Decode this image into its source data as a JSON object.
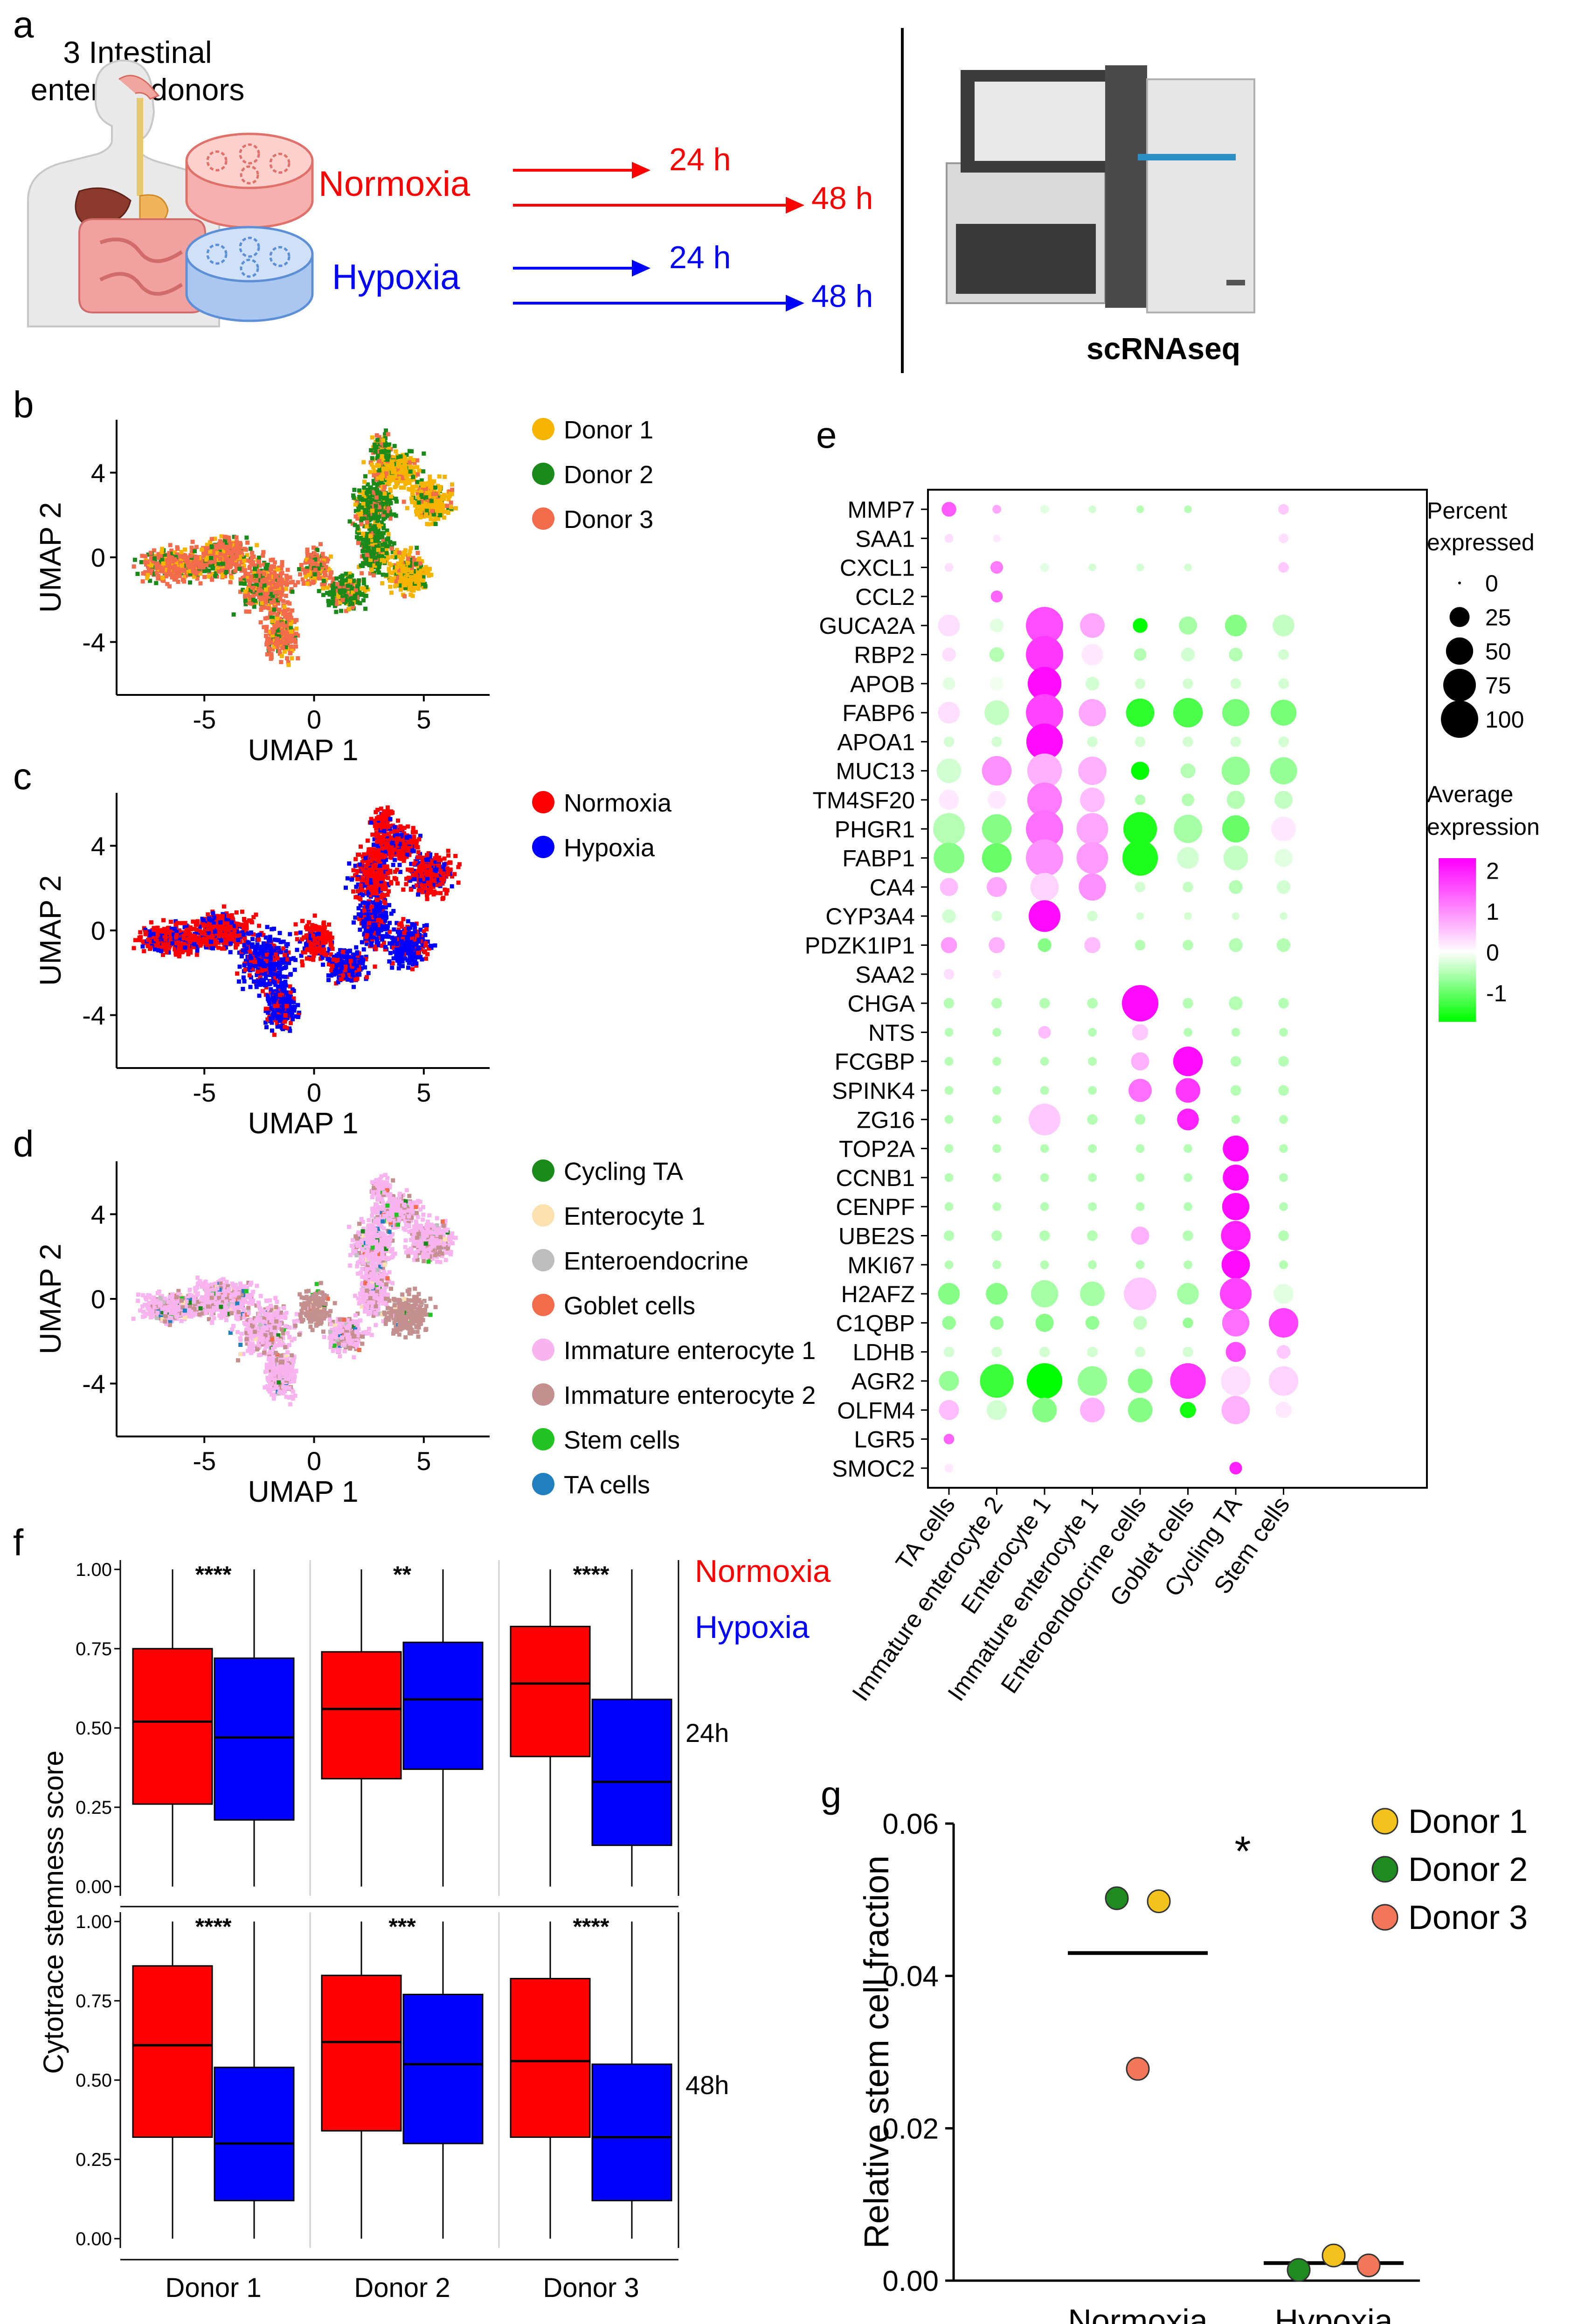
{
  "panel_labels": {
    "a": "a",
    "b": "b",
    "c": "c",
    "d": "d",
    "e": "e",
    "f": "f",
    "g": "g"
  },
  "panel_a": {
    "title_line1": "3 Intestinal",
    "title_line2": "enteroid donors",
    "normoxia_label": "Normoxia",
    "hypoxia_label": "Hypoxia",
    "normoxia_times": [
      "24 h",
      "48 h"
    ],
    "hypoxia_times": [
      "24 h",
      "48 h"
    ],
    "instrument_label": "scRNAseq",
    "colors": {
      "normoxia": "#ff0000",
      "hypoxia": "#0000ff"
    }
  },
  "chart_data": [
    {
      "id": "umap-donor",
      "type": "scatter",
      "xlabel": "UMAP 1",
      "ylabel": "UMAP 2",
      "xticks": [
        -5,
        0,
        5
      ],
      "yticks": [
        -4,
        0,
        4
      ],
      "xlim": [
        -9,
        8
      ],
      "ylim": [
        -6.5,
        6.5
      ],
      "legend": [
        {
          "label": "Donor 1",
          "color": "#f4b400"
        },
        {
          "label": "Donor 2",
          "color": "#1a8a1a"
        },
        {
          "label": "Donor 3",
          "color": "#f26b4b"
        }
      ]
    },
    {
      "id": "umap-condition",
      "type": "scatter",
      "xlabel": "UMAP 1",
      "ylabel": "UMAP 2",
      "xticks": [
        -5,
        0,
        5
      ],
      "yticks": [
        -4,
        0,
        4
      ],
      "xlim": [
        -9,
        8
      ],
      "ylim": [
        -6.5,
        6.5
      ],
      "legend": [
        {
          "label": "Normoxia",
          "color": "#ff0000"
        },
        {
          "label": "Hypoxia",
          "color": "#0000ff"
        }
      ]
    },
    {
      "id": "umap-celltype",
      "type": "scatter",
      "xlabel": "UMAP 1",
      "ylabel": "UMAP 2",
      "xticks": [
        -5,
        0,
        5
      ],
      "yticks": [
        -4,
        0,
        4
      ],
      "xlim": [
        -9,
        8
      ],
      "ylim": [
        -6.5,
        6.5
      ],
      "legend": [
        {
          "label": "Cycling TA",
          "color": "#1a8a1a"
        },
        {
          "label": "Enterocyte 1",
          "color": "#fbe0b0"
        },
        {
          "label": "Enteroendocrine",
          "color": "#bdbdbd"
        },
        {
          "label": "Goblet cells",
          "color": "#f26b4b"
        },
        {
          "label": "Immature enterocyte 1",
          "color": "#f7b4ee"
        },
        {
          "label": "Immature enterocyte 2",
          "color": "#c48f8f"
        },
        {
          "label": "Stem cells",
          "color": "#22c322"
        },
        {
          "label": "TA cells",
          "color": "#1f7fbf"
        }
      ]
    },
    {
      "id": "dotplot",
      "type": "heatmap",
      "genes": [
        "MMP7",
        "SAA1",
        "CXCL1",
        "CCL2",
        "GUCA2A",
        "RBP2",
        "APOB",
        "FABP6",
        "APOA1",
        "MUC13",
        "TM4SF20",
        "PHGR1",
        "FABP1",
        "CA4",
        "CYP3A4",
        "PDZK1IP1",
        "SAA2",
        "CHGA",
        "NTS",
        "FCGBP",
        "SPINK4",
        "ZG16",
        "TOP2A",
        "CCNB1",
        "CENPF",
        "UBE2S",
        "MKI67",
        "H2AFZ",
        "C1QBP",
        "LDHB",
        "AGR2",
        "OLFM4",
        "LGR5",
        "SMOC2"
      ],
      "clusters": [
        "TA cells",
        "Immature enterocyte 2",
        "Enterocyte 1",
        "Immature enterocyte 1",
        "Enteroendocrine cells",
        "Goblet cells",
        "Cycling TA",
        "Stem cells"
      ],
      "percent": [
        [
          12,
          3,
          3,
          2,
          2,
          2,
          3,
          5
        ],
        [
          3,
          2,
          2,
          2,
          2,
          2,
          2,
          4
        ],
        [
          3,
          8,
          3,
          2,
          2,
          2,
          3,
          5
        ],
        [
          2,
          7,
          2,
          2,
          2,
          2,
          2,
          2
        ],
        [
          30,
          10,
          100,
          40,
          12,
          20,
          30,
          30
        ],
        [
          10,
          12,
          100,
          30,
          8,
          10,
          10,
          5
        ],
        [
          8,
          10,
          80,
          10,
          5,
          5,
          5,
          5
        ],
        [
          30,
          40,
          100,
          50,
          55,
          60,
          50,
          45
        ],
        [
          5,
          5,
          95,
          5,
          5,
          5,
          5,
          5
        ],
        [
          40,
          60,
          85,
          55,
          20,
          12,
          55,
          50
        ],
        [
          25,
          20,
          85,
          40,
          5,
          8,
          20,
          20
        ],
        [
          70,
          60,
          100,
          70,
          80,
          55,
          50,
          40
        ],
        [
          65,
          60,
          100,
          70,
          90,
          30,
          40,
          20
        ],
        [
          20,
          25,
          55,
          50,
          5,
          5,
          10,
          10
        ],
        [
          10,
          5,
          70,
          5,
          2,
          2,
          2,
          2
        ],
        [
          15,
          15,
          10,
          15,
          5,
          5,
          10,
          10
        ],
        [
          5,
          3,
          2,
          2,
          2,
          2,
          2,
          2
        ],
        [
          5,
          5,
          5,
          5,
          95,
          5,
          10,
          5
        ],
        [
          3,
          3,
          8,
          3,
          15,
          3,
          3,
          3
        ],
        [
          3,
          3,
          3,
          3,
          20,
          60,
          5,
          5
        ],
        [
          3,
          3,
          3,
          3,
          35,
          40,
          5,
          5
        ],
        [
          3,
          3,
          70,
          5,
          5,
          30,
          3,
          3
        ],
        [
          3,
          3,
          3,
          3,
          3,
          3,
          45,
          3
        ],
        [
          3,
          3,
          3,
          3,
          3,
          3,
          45,
          3
        ],
        [
          3,
          3,
          3,
          3,
          3,
          3,
          50,
          3
        ],
        [
          5,
          5,
          5,
          5,
          20,
          5,
          60,
          5
        ],
        [
          3,
          3,
          3,
          3,
          3,
          3,
          55,
          3
        ],
        [
          30,
          30,
          50,
          40,
          75,
          30,
          70,
          25
        ],
        [
          10,
          10,
          20,
          10,
          10,
          5,
          50,
          60
        ],
        [
          5,
          5,
          5,
          5,
          5,
          5,
          25,
          10
        ],
        [
          25,
          80,
          90,
          60,
          40,
          90,
          60,
          60
        ],
        [
          25,
          25,
          40,
          40,
          40,
          15,
          55,
          15
        ],
        [
          5,
          2,
          2,
          2,
          2,
          2,
          2,
          2
        ],
        [
          3,
          2,
          2,
          2,
          2,
          2,
          8,
          2
        ]
      ],
      "avg": [
        [
          1.5,
          0.8,
          -0.2,
          -0.3,
          -0.5,
          -0.5,
          0,
          0.5
        ],
        [
          0.3,
          0.2,
          0,
          0,
          0,
          0,
          0,
          0.3
        ],
        [
          0.3,
          1.2,
          -0.2,
          -0.3,
          -0.3,
          -0.3,
          0,
          0.5
        ],
        [
          0,
          1.4,
          0,
          0,
          0,
          0,
          0,
          0
        ],
        [
          0.3,
          -0.2,
          1.6,
          0.8,
          -2,
          -0.6,
          -0.8,
          -0.4
        ],
        [
          0.3,
          -0.5,
          1.8,
          0.2,
          -0.5,
          -0.3,
          -0.5,
          -0.3
        ],
        [
          -0.2,
          -0.1,
          2.2,
          -0.3,
          -0.3,
          -0.3,
          -0.3,
          -0.3
        ],
        [
          0.3,
          -0.4,
          1.7,
          0.8,
          -1.4,
          -1.2,
          -0.9,
          -0.9
        ],
        [
          -0.3,
          -0.3,
          2.2,
          -0.3,
          -0.3,
          -0.3,
          -0.3,
          -0.3
        ],
        [
          -0.3,
          1.0,
          0.7,
          0.7,
          -2,
          -0.5,
          -0.7,
          -0.7
        ],
        [
          0.2,
          0.2,
          1.2,
          0.6,
          -0.5,
          -0.5,
          -0.5,
          -0.4
        ],
        [
          -0.5,
          -0.8,
          1.3,
          0.8,
          -1.5,
          -0.6,
          -1,
          0.2
        ],
        [
          -0.8,
          -1,
          1.0,
          0.9,
          -1.5,
          -0.3,
          -0.4,
          -0.2
        ],
        [
          0.6,
          0.8,
          0.4,
          1.0,
          -0.3,
          -0.4,
          -0.5,
          -0.3
        ],
        [
          -0.3,
          -0.3,
          2.2,
          -0.3,
          -0.3,
          -0.3,
          -0.3,
          -0.3
        ],
        [
          0.9,
          0.7,
          -0.8,
          0.6,
          -0.5,
          -0.5,
          -0.5,
          -0.5
        ],
        [
          0.3,
          0.2,
          0,
          0,
          0,
          0,
          0,
          0
        ],
        [
          -0.5,
          -0.5,
          -0.5,
          -0.5,
          2.2,
          -0.5,
          -0.5,
          -0.5
        ],
        [
          -0.5,
          -0.5,
          0.6,
          -0.5,
          0.5,
          -0.5,
          -0.5,
          -0.5
        ],
        [
          -0.5,
          -0.5,
          -0.5,
          -0.5,
          0.7,
          2.2,
          -0.5,
          -0.5
        ],
        [
          -0.5,
          -0.5,
          -0.5,
          -0.5,
          1.3,
          1.8,
          -0.5,
          -0.5
        ],
        [
          -0.5,
          -0.5,
          0.5,
          -0.5,
          -0.5,
          2,
          -0.5,
          -0.5
        ],
        [
          -0.5,
          -0.5,
          -0.5,
          -0.5,
          -0.5,
          -0.5,
          2.2,
          -0.5
        ],
        [
          -0.5,
          -0.5,
          -0.5,
          -0.5,
          -0.5,
          -0.5,
          2.2,
          -0.5
        ],
        [
          -0.5,
          -0.5,
          -0.5,
          -0.5,
          -0.5,
          -0.5,
          2.2,
          -0.5
        ],
        [
          -0.5,
          -0.5,
          -0.5,
          -0.5,
          0.7,
          -0.5,
          2,
          -0.5
        ],
        [
          -0.5,
          -0.5,
          -0.5,
          -0.5,
          -0.5,
          -0.5,
          2.2,
          -0.5
        ],
        [
          -0.8,
          -0.8,
          -0.6,
          -0.6,
          0.5,
          -0.6,
          1.7,
          -0.2
        ],
        [
          -0.7,
          -0.7,
          -0.8,
          -0.7,
          -0.4,
          -0.7,
          1.3,
          1.7
        ],
        [
          -0.3,
          -0.3,
          -0.3,
          -0.3,
          -0.3,
          -0.3,
          1.6,
          0.5
        ],
        [
          -0.7,
          -1.3,
          -1.8,
          -0.7,
          -0.8,
          1.8,
          0.3,
          0.4
        ],
        [
          0.6,
          -0.3,
          -0.8,
          0.7,
          -0.8,
          -1.6,
          0.7,
          0.2
        ],
        [
          1.4,
          0,
          0,
          0,
          0,
          0,
          0,
          0
        ],
        [
          0.2,
          0,
          0,
          0,
          0,
          0,
          2,
          0
        ]
      ],
      "size_legend_title": [
        "Percent",
        "expressed"
      ],
      "size_legend": [
        0,
        25,
        50,
        75,
        100
      ],
      "color_legend_title": [
        "Average",
        "expression"
      ],
      "color_legend_ticks": [
        2,
        1,
        0,
        -1
      ],
      "color_range": [
        -1.7,
        2.3
      ]
    },
    {
      "id": "boxplot-stemness",
      "type": "bar",
      "ylabel": "Cytotrace stemness score",
      "categories": [
        "Donor 1",
        "Donor 2",
        "Donor 3"
      ],
      "ylim": [
        0,
        1
      ],
      "yticks": [
        "0.00",
        "0.25",
        "0.50",
        "0.75",
        "1.00"
      ],
      "legend": [
        {
          "label": "Normoxia",
          "color": "#ff0000"
        },
        {
          "label": "Hypoxia",
          "color": "#0000ff"
        }
      ],
      "rows": [
        {
          "label": "24h",
          "significance": [
            "****",
            "**",
            "****"
          ],
          "boxes": [
            {
              "donor": "Donor 1",
              "normoxia": [
                0,
                0.26,
                0.52,
                0.75,
                1
              ],
              "hypoxia": [
                0,
                0.21,
                0.47,
                0.72,
                1
              ]
            },
            {
              "donor": "Donor 2",
              "normoxia": [
                0,
                0.34,
                0.56,
                0.74,
                1
              ],
              "hypoxia": [
                0,
                0.37,
                0.59,
                0.77,
                1
              ]
            },
            {
              "donor": "Donor 3",
              "normoxia": [
                0,
                0.41,
                0.64,
                0.82,
                1
              ],
              "hypoxia": [
                0,
                0.13,
                0.33,
                0.59,
                1
              ]
            }
          ]
        },
        {
          "label": "48h",
          "significance": [
            "****",
            "***",
            "****"
          ],
          "boxes": [
            {
              "donor": "Donor 1",
              "normoxia": [
                0,
                0.32,
                0.61,
                0.86,
                1
              ],
              "hypoxia": [
                0,
                0.12,
                0.3,
                0.54,
                1
              ]
            },
            {
              "donor": "Donor 2",
              "normoxia": [
                0,
                0.34,
                0.62,
                0.83,
                1
              ],
              "hypoxia": [
                0,
                0.3,
                0.55,
                0.77,
                1
              ]
            },
            {
              "donor": "Donor 3",
              "normoxia": [
                0,
                0.32,
                0.56,
                0.82,
                1
              ],
              "hypoxia": [
                0,
                0.12,
                0.32,
                0.55,
                1
              ]
            }
          ]
        }
      ]
    },
    {
      "id": "stem-fraction",
      "type": "scatter",
      "ylabel": "Relative stem cell fraction",
      "categories": [
        "Normoxia",
        "Hypoxia"
      ],
      "ylim": [
        0,
        0.06
      ],
      "yticks": [
        "0.00",
        "0.02",
        "0.04",
        "0.06"
      ],
      "significance": "*",
      "means": [
        0.043,
        0.0023
      ],
      "legend": [
        {
          "label": "Donor 1",
          "color": "#f4c21d"
        },
        {
          "label": "Donor 2",
          "color": "#1f8a1f"
        },
        {
          "label": "Donor 3",
          "color": "#f2765a"
        }
      ],
      "points": [
        {
          "group": "Normoxia",
          "donor": "Donor 1",
          "value": 0.0498
        },
        {
          "group": "Normoxia",
          "donor": "Donor 2",
          "value": 0.0502
        },
        {
          "group": "Normoxia",
          "donor": "Donor 3",
          "value": 0.0278
        },
        {
          "group": "Hypoxia",
          "donor": "Donor 1",
          "value": 0.0033
        },
        {
          "group": "Hypoxia",
          "donor": "Donor 2",
          "value": 0.0014
        },
        {
          "group": "Hypoxia",
          "donor": "Donor 3",
          "value": 0.002
        }
      ]
    }
  ]
}
